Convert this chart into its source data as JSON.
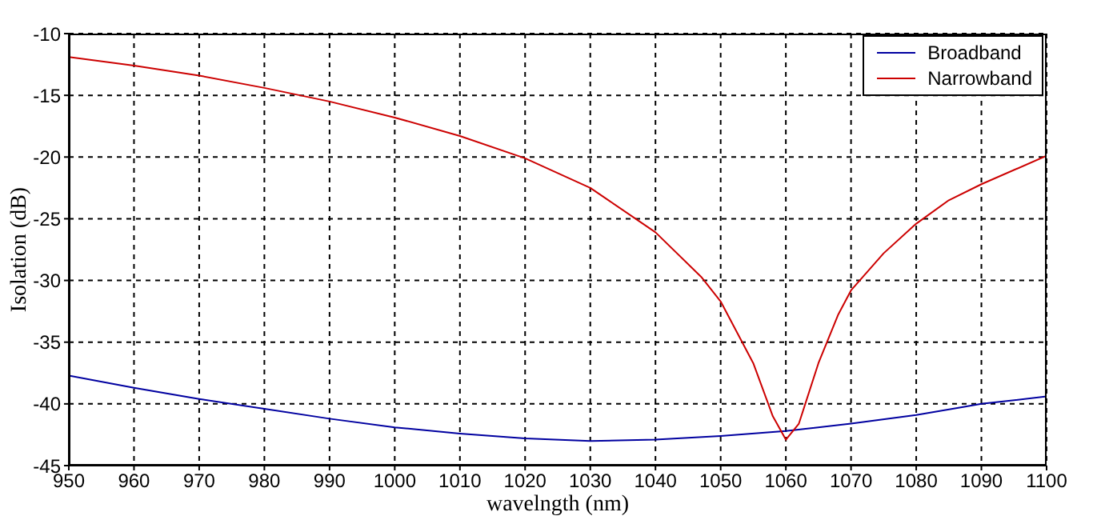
{
  "chart_data": {
    "type": "line",
    "xlabel": "wavelngth (nm)",
    "ylabel": "Isolation (dB)",
    "xlim": [
      950,
      1100
    ],
    "xticks": [
      950,
      960,
      970,
      980,
      990,
      1000,
      1010,
      1020,
      1030,
      1040,
      1050,
      1060,
      1070,
      1080,
      1090,
      1100
    ],
    "ylim": [
      -45,
      -10
    ],
    "yticks": [
      -45,
      -40,
      -35,
      -30,
      -25,
      -20,
      -15,
      -10
    ],
    "grid": true,
    "legend": "top right",
    "marker": "none",
    "line_style": "solid",
    "series": [
      {
        "name": "Broadband",
        "color": "#0000a0",
        "x": [
          950,
          960,
          970,
          980,
          990,
          1000,
          1010,
          1020,
          1030,
          1040,
          1050,
          1060,
          1070,
          1080,
          1090,
          1100
        ],
        "values": [
          -37.7,
          -38.7,
          -39.6,
          -40.4,
          -41.2,
          -41.9,
          -42.4,
          -42.8,
          -43.0,
          -42.9,
          -42.6,
          -42.2,
          -41.6,
          -40.9,
          -40.0,
          -39.4
        ]
      },
      {
        "name": "Narrowband",
        "color": "#cc0000",
        "x": [
          950,
          960,
          970,
          980,
          990,
          1000,
          1010,
          1020,
          1030,
          1040,
          1047,
          1050,
          1055,
          1058,
          1060,
          1062,
          1065,
          1068,
          1070,
          1075,
          1080,
          1085,
          1090,
          1100
        ],
        "values": [
          -11.9,
          -12.6,
          -13.4,
          -14.4,
          -15.5,
          -16.8,
          -18.3,
          -20.1,
          -22.5,
          -26.1,
          -29.7,
          -31.7,
          -36.7,
          -41.0,
          -42.9,
          -41.6,
          -36.7,
          -32.8,
          -30.8,
          -27.8,
          -25.4,
          -23.5,
          -22.2,
          -19.9
        ]
      }
    ]
  }
}
